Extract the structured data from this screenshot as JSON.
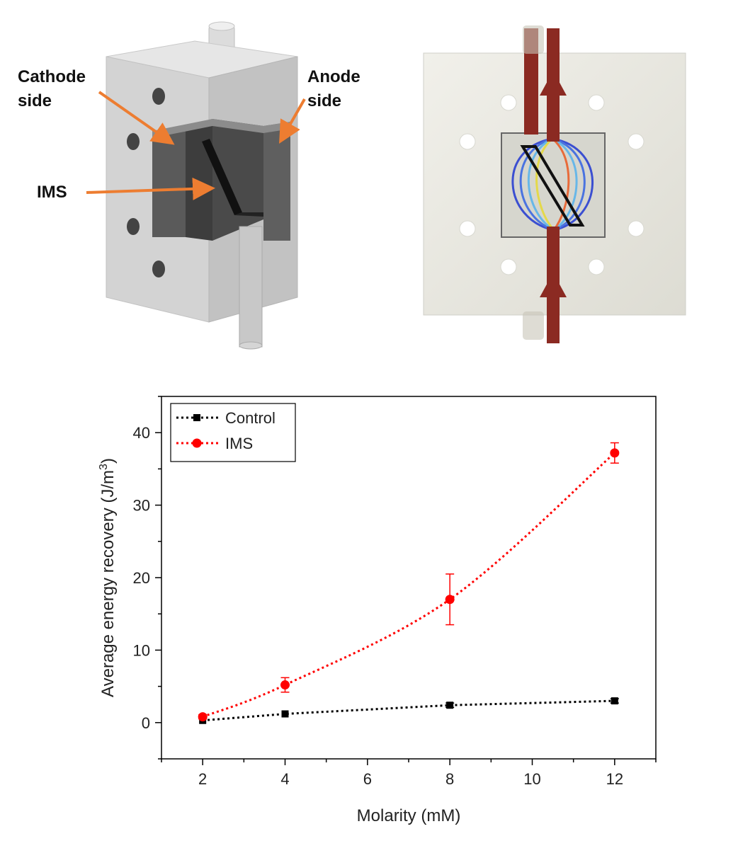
{
  "left_figure": {
    "labels": {
      "cathode": "Cathode\nside",
      "anode": "Anode\nside",
      "ims": "IMS"
    },
    "colors": {
      "arrow": "#ed7d31",
      "body": "#d4d4d4",
      "slot": "#595959"
    }
  },
  "right_figure": {
    "colors": {
      "plate": "#e9e8e1",
      "flow": "#8b2a22",
      "outline": "#111111"
    }
  },
  "chart_data": {
    "type": "line",
    "title": "",
    "xlabel": "Molarity (mM)",
    "ylabel_main": "Average energy recovery (J/m",
    "ylabel_sup": "3",
    "ylabel_close": ")",
    "x": [
      2,
      4,
      8,
      12
    ],
    "xlim": [
      1,
      13
    ],
    "ylim": [
      -5,
      45
    ],
    "xticks": [
      2,
      4,
      6,
      8,
      10,
      12
    ],
    "yticks": [
      0,
      10,
      20,
      30,
      40
    ],
    "grid": false,
    "legend_position": "top-left",
    "series": [
      {
        "name": "Control",
        "values": [
          0.3,
          1.2,
          2.4,
          3.0
        ],
        "errors": [
          0.2,
          0.2,
          0.3,
          0.3
        ],
        "color": "#000000",
        "marker": "square",
        "line": "dotted"
      },
      {
        "name": "IMS",
        "values": [
          0.8,
          5.2,
          17.0,
          37.2
        ],
        "errors": [
          0.3,
          1.0,
          3.5,
          1.4
        ],
        "color": "#ff0000",
        "marker": "circle",
        "line": "dotted"
      }
    ]
  }
}
